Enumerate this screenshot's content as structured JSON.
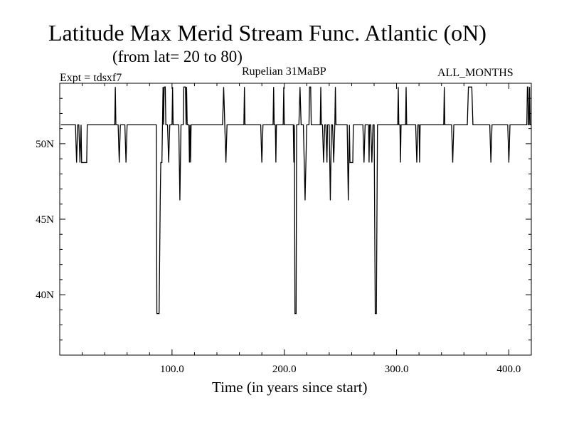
{
  "chart_data": {
    "type": "line",
    "title": "Latitude Max Merid Stream Func. Atlantic (oN)",
    "subtitle": "(from lat= 20 to 80)",
    "experiment_label": "Expt = tdsxf7",
    "period_label": "Rupelian  31MaBP",
    "months_label": "ALL_MONTHS",
    "xlabel": "Time (in years since start)",
    "ylabel": "",
    "xlim": [
      0,
      420
    ],
    "ylim": [
      36,
      54
    ],
    "x_ticks": [
      {
        "value": 100,
        "label": "100.0"
      },
      {
        "value": 200,
        "label": "200.0"
      },
      {
        "value": 300,
        "label": "300.0"
      },
      {
        "value": 400,
        "label": "400.0"
      }
    ],
    "y_ticks": [
      {
        "value": 40,
        "label": "40N"
      },
      {
        "value": 45,
        "label": "45N"
      },
      {
        "value": 50,
        "label": "50N"
      }
    ],
    "line_color": "#000000",
    "baseline": 51.25,
    "series": [
      {
        "name": "latitude_max",
        "points": [
          [
            1,
            51.25
          ],
          [
            14,
            51.25
          ],
          [
            15,
            48.75
          ],
          [
            16,
            51.25
          ],
          [
            17,
            51.25
          ],
          [
            18,
            48.75
          ],
          [
            19,
            51.25
          ],
          [
            19.5,
            48.75
          ],
          [
            24,
            48.75
          ],
          [
            24.5,
            51.25
          ],
          [
            49,
            51.25
          ],
          [
            49.5,
            53.75
          ],
          [
            50,
            51.25
          ],
          [
            52,
            51.25
          ],
          [
            53,
            48.75
          ],
          [
            54,
            51.25
          ],
          [
            58,
            51.25
          ],
          [
            59,
            48.75
          ],
          [
            60,
            51.25
          ],
          [
            86,
            51.25
          ],
          [
            86.5,
            38.75
          ],
          [
            88.5,
            38.75
          ],
          [
            89.5,
            46.25
          ],
          [
            90,
            48.75
          ],
          [
            91,
            48.75
          ],
          [
            91.5,
            51.25
          ],
          [
            92,
            53.75
          ],
          [
            92.5,
            51.25
          ],
          [
            93,
            53.75
          ],
          [
            94,
            53.75
          ],
          [
            94.5,
            51.25
          ],
          [
            96,
            51.25
          ],
          [
            97,
            48.75
          ],
          [
            98,
            51.25
          ],
          [
            100,
            51.25
          ],
          [
            100.5,
            53.75
          ],
          [
            101,
            51.25
          ],
          [
            106,
            51.25
          ],
          [
            107,
            46.25
          ],
          [
            108,
            51.25
          ],
          [
            110,
            51.25
          ],
          [
            110.5,
            53.75
          ],
          [
            112,
            53.75
          ],
          [
            112.5,
            51.25
          ],
          [
            113,
            53.75
          ],
          [
            113.5,
            51.25
          ],
          [
            115,
            51.25
          ],
          [
            115.5,
            48.75
          ],
          [
            116,
            51.25
          ],
          [
            116.5,
            48.75
          ],
          [
            117,
            51.25
          ],
          [
            145,
            51.25
          ],
          [
            146,
            53.75
          ],
          [
            147,
            51.25
          ],
          [
            148,
            48.75
          ],
          [
            149,
            51.25
          ],
          [
            164,
            51.25
          ],
          [
            164.5,
            53.75
          ],
          [
            165,
            51.25
          ],
          [
            179,
            51.25
          ],
          [
            180,
            48.75
          ],
          [
            181,
            51.25
          ],
          [
            190,
            51.25
          ],
          [
            190.5,
            53.75
          ],
          [
            191,
            51.25
          ],
          [
            192,
            51.25
          ],
          [
            192.5,
            48.75
          ],
          [
            193,
            51.25
          ],
          [
            199,
            51.25
          ],
          [
            199.5,
            53.75
          ],
          [
            200,
            51.25
          ],
          [
            208,
            51.25
          ],
          [
            208.5,
            48.75
          ],
          [
            209,
            51.25
          ],
          [
            209.5,
            38.75
          ],
          [
            210.5,
            38.75
          ],
          [
            211,
            51.25
          ],
          [
            213,
            51.25
          ],
          [
            214,
            53.75
          ],
          [
            215,
            51.25
          ],
          [
            217,
            51.25
          ],
          [
            218.5,
            46.25
          ],
          [
            220,
            51.25
          ],
          [
            222,
            51.25
          ],
          [
            222.5,
            53.75
          ],
          [
            223.5,
            53.75
          ],
          [
            224,
            51.25
          ],
          [
            232,
            51.25
          ],
          [
            232.5,
            53.75
          ],
          [
            233,
            51.25
          ],
          [
            234,
            51.25
          ],
          [
            235,
            48.75
          ],
          [
            236,
            51.25
          ],
          [
            237,
            51.25
          ],
          [
            238,
            48.75
          ],
          [
            238.5,
            51.25
          ],
          [
            240,
            51.25
          ],
          [
            241,
            46.25
          ],
          [
            242,
            51.25
          ],
          [
            243,
            51.25
          ],
          [
            244,
            48.75
          ],
          [
            245,
            51.25
          ],
          [
            245.5,
            53.75
          ],
          [
            246,
            51.25
          ],
          [
            256,
            51.25
          ],
          [
            257,
            46.25
          ],
          [
            258,
            51.25
          ],
          [
            258.5,
            48.75
          ],
          [
            261,
            48.75
          ],
          [
            261.5,
            51.25
          ],
          [
            270,
            51.25
          ],
          [
            271,
            48.75
          ],
          [
            272,
            51.25
          ],
          [
            275,
            51.25
          ],
          [
            275.5,
            48.75
          ],
          [
            276,
            51.25
          ],
          [
            277,
            51.25
          ],
          [
            278,
            48.75
          ],
          [
            279,
            51.25
          ],
          [
            280,
            51.25
          ],
          [
            281,
            38.75
          ],
          [
            282,
            38.75
          ],
          [
            283,
            51.25
          ],
          [
            301,
            51.25
          ],
          [
            301.5,
            53.75
          ],
          [
            302,
            51.25
          ],
          [
            303,
            51.25
          ],
          [
            303.5,
            48.75
          ],
          [
            304,
            51.25
          ],
          [
            308,
            51.25
          ],
          [
            308.5,
            53.75
          ],
          [
            309,
            51.25
          ],
          [
            317,
            51.25
          ],
          [
            318,
            48.75
          ],
          [
            319,
            51.25
          ],
          [
            320,
            51.25
          ],
          [
            320.5,
            48.75
          ],
          [
            321,
            51.25
          ],
          [
            342,
            51.25
          ],
          [
            342.5,
            53.75
          ],
          [
            343,
            51.25
          ],
          [
            349,
            51.25
          ],
          [
            350,
            48.75
          ],
          [
            351,
            51.25
          ],
          [
            363,
            51.25
          ],
          [
            364,
            53.75
          ],
          [
            367,
            53.75
          ],
          [
            368,
            51.25
          ],
          [
            383,
            51.25
          ],
          [
            384,
            48.75
          ],
          [
            385,
            51.25
          ],
          [
            399,
            51.25
          ],
          [
            400,
            48.75
          ],
          [
            401,
            51.25
          ],
          [
            416,
            51.25
          ],
          [
            416.5,
            53.75
          ],
          [
            417,
            53.75
          ],
          [
            417.5,
            51.25
          ],
          [
            418,
            51.25
          ],
          [
            418.5,
            53.75
          ],
          [
            419,
            51.25
          ],
          [
            420,
            51.25
          ]
        ]
      }
    ]
  }
}
